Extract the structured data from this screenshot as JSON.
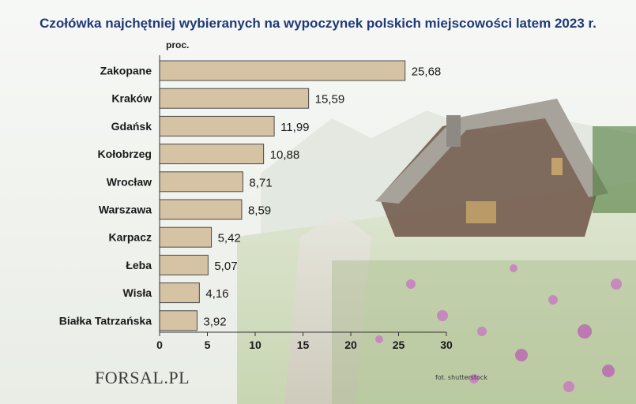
{
  "title": "Czołówka najchętniej wybieranych na wypoczynek polskich miejscowości latem 2023 r.",
  "logo": {
    "text": "FORSAL.PL"
  },
  "credit": "fot. shutterstock",
  "colors": {
    "bar_fill": "#d6c3a4",
    "bar_stroke": "#4a4a4a",
    "title": "#1f3a78",
    "text": "#1a1a1a"
  },
  "chart_data": {
    "type": "bar",
    "orientation": "horizontal",
    "title": "Czołówka najchętniej wybieranych na wypoczynek polskich miejscowości latem 2023 r.",
    "unit_label": "proc.",
    "categories": [
      "Zakopane",
      "Kraków",
      "Gdańsk",
      "Kołobrzeg",
      "Wrocław",
      "Warszawa",
      "Karpacz",
      "Łeba",
      "Wisła",
      "Białka Tatrzańska"
    ],
    "values": [
      25.68,
      15.59,
      11.99,
      10.88,
      8.71,
      8.59,
      5.42,
      5.07,
      4.16,
      3.92
    ],
    "value_labels": [
      "25,68",
      "15,59",
      "11,99",
      "10,88",
      "8,71",
      "8,59",
      "5,42",
      "5,07",
      "4,16",
      "3,92"
    ],
    "xlim": [
      0,
      30
    ],
    "xticks": [
      0,
      5,
      10,
      15,
      20,
      25,
      30
    ],
    "grid": false,
    "legend": "none"
  }
}
